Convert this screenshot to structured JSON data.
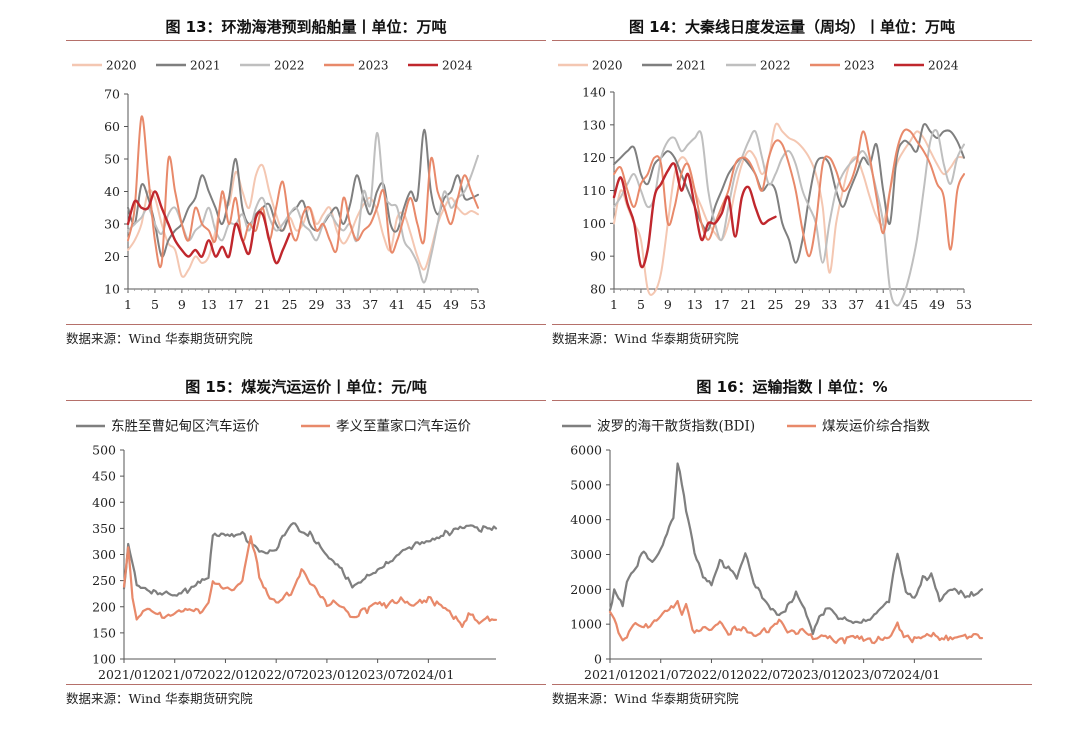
{
  "source_label": "数据来源：Wind 华泰期货研究院",
  "chart_data": [
    {
      "id": "fig13",
      "type": "line",
      "title": "图 13：环渤海港预到船舶量丨单位：万吨",
      "xlabel": "",
      "ylabel": "",
      "ylim": [
        10,
        70
      ],
      "yticks": [
        10,
        20,
        30,
        40,
        50,
        60,
        70
      ],
      "x_ticks": [
        1,
        5,
        9,
        13,
        17,
        21,
        25,
        29,
        33,
        37,
        41,
        45,
        49,
        53
      ],
      "x_range": [
        1,
        53
      ],
      "series": [
        {
          "name": "2020",
          "color": "#f4c7b2",
          "values": [
            22,
            25,
            30,
            40,
            38,
            30,
            24,
            22,
            14,
            16,
            20,
            18,
            20,
            28,
            38,
            36,
            46,
            40,
            35,
            45,
            48,
            40,
            33,
            28,
            32,
            28,
            30,
            35,
            30,
            33,
            35,
            28,
            24,
            27,
            32,
            36,
            38,
            34,
            26,
            22,
            32,
            33,
            27,
            20,
            16,
            22,
            30,
            35,
            38,
            35,
            33,
            34,
            33
          ]
        },
        {
          "name": "2021",
          "color": "#7f7f7f",
          "values": [
            35,
            30,
            42,
            38,
            30,
            20,
            25,
            28,
            30,
            35,
            38,
            45,
            40,
            35,
            30,
            38,
            50,
            35,
            30,
            33,
            35,
            36,
            30,
            28,
            33,
            35,
            37,
            30,
            28,
            30,
            33,
            35,
            30,
            36,
            45,
            38,
            33,
            40,
            42,
            30,
            28,
            35,
            40,
            38,
            59,
            40,
            33,
            38,
            40,
            45,
            38,
            38,
            39
          ]
        },
        {
          "name": "2022",
          "color": "#bfbfbf",
          "values": [
            28,
            30,
            32,
            35,
            30,
            27,
            33,
            35,
            30,
            25,
            28,
            30,
            35,
            28,
            25,
            30,
            30,
            33,
            28,
            35,
            38,
            32,
            28,
            30,
            33,
            35,
            30,
            28,
            25,
            30,
            33,
            30,
            28,
            30,
            25,
            40,
            36,
            58,
            40,
            36,
            35,
            25,
            22,
            18,
            12,
            20,
            30,
            40,
            35,
            38,
            40,
            45,
            51
          ]
        },
        {
          "name": "2023",
          "color": "#e8896a",
          "values": [
            25,
            35,
            63,
            45,
            25,
            18,
            50,
            40,
            30,
            25,
            35,
            30,
            28,
            25,
            40,
            30,
            38,
            25,
            30,
            28,
            35,
            25,
            35,
            43,
            30,
            25,
            33,
            35,
            28,
            30,
            25,
            22,
            38,
            30,
            25,
            28,
            30,
            35,
            40,
            22,
            25,
            32,
            38,
            30,
            25,
            50,
            40,
            35,
            30,
            38,
            45,
            40,
            35
          ]
        },
        {
          "name": "2024",
          "color": "#c0272d",
          "values": [
            30,
            37,
            35,
            35,
            40,
            35,
            30,
            25,
            22,
            20,
            22,
            20,
            25,
            20,
            23,
            20,
            30,
            25,
            21,
            32,
            33,
            25,
            18,
            22,
            27
          ]
        }
      ]
    },
    {
      "id": "fig14",
      "type": "line",
      "title": "图 14：大秦线日度发运量（周均）丨单位：万吨",
      "xlabel": "",
      "ylabel": "",
      "ylim": [
        80,
        140
      ],
      "yticks": [
        80,
        90,
        100,
        110,
        120,
        130,
        140
      ],
      "x_ticks": [
        1,
        5,
        9,
        13,
        17,
        21,
        25,
        29,
        33,
        37,
        41,
        45,
        49,
        53
      ],
      "x_range": [
        1,
        53
      ],
      "series": [
        {
          "name": "2020",
          "color": "#f4c7b2",
          "values": [
            100,
            110,
            105,
            100,
            95,
            80,
            79,
            85,
            100,
            115,
            120,
            118,
            110,
            105,
            100,
            97,
            95,
            100,
            110,
            118,
            122,
            120,
            115,
            120,
            130,
            128,
            126,
            125,
            123,
            120,
            115,
            105,
            85,
            100,
            110,
            118,
            120,
            115,
            108,
            102,
            100,
            110,
            118,
            122,
            125,
            128,
            126,
            122,
            118,
            115,
            117,
            120,
            120
          ]
        },
        {
          "name": "2021",
          "color": "#7f7f7f",
          "values": [
            118,
            120,
            122,
            123,
            115,
            112,
            118,
            120,
            122,
            120,
            115,
            110,
            105,
            100,
            98,
            105,
            110,
            115,
            118,
            120,
            118,
            115,
            110,
            112,
            110,
            100,
            95,
            88,
            95,
            108,
            118,
            120,
            118,
            110,
            105,
            110,
            115,
            120,
            118,
            124,
            110,
            100,
            120,
            125,
            124,
            122,
            130,
            128,
            126,
            128,
            128,
            125,
            120
          ]
        },
        {
          "name": "2022",
          "color": "#bfbfbf",
          "values": [
            105,
            108,
            112,
            115,
            110,
            105,
            108,
            120,
            125,
            126,
            122,
            124,
            126,
            127,
            110,
            100,
            95,
            105,
            115,
            120,
            125,
            128,
            120,
            112,
            115,
            120,
            122,
            118,
            110,
            105,
            100,
            88,
            100,
            110,
            115,
            118,
            120,
            122,
            118,
            110,
            100,
            80,
            75,
            78,
            85,
            95,
            110,
            125,
            128,
            118,
            112,
            120,
            124
          ]
        },
        {
          "name": "2023",
          "color": "#e8896a",
          "values": [
            115,
            117,
            110,
            105,
            112,
            115,
            120,
            118,
            100,
            105,
            115,
            118,
            110,
            100,
            95,
            100,
            105,
            110,
            118,
            120,
            119,
            115,
            110,
            120,
            125,
            124,
            118,
            110,
            98,
            90,
            100,
            118,
            120,
            116,
            110,
            112,
            118,
            128,
            120,
            108,
            97,
            110,
            122,
            128,
            128,
            125,
            122,
            118,
            112,
            108,
            92,
            110,
            115
          ]
        },
        {
          "name": "2024",
          "color": "#c0272d",
          "values": [
            108,
            114,
            106,
            100,
            87,
            92,
            108,
            112,
            116,
            118,
            110,
            115,
            105,
            95,
            100,
            100,
            103,
            108,
            96,
            108,
            111,
            105,
            100,
            101,
            102
          ]
        }
      ]
    },
    {
      "id": "fig15",
      "type": "line",
      "title": "图 15：煤炭汽运运价丨单位：元/吨",
      "xlabel": "",
      "ylabel": "",
      "ylim": [
        100,
        500
      ],
      "yticks": [
        100,
        150,
        200,
        250,
        300,
        350,
        400,
        450,
        500
      ],
      "x_range": [
        0,
        44
      ],
      "x_ticks_labels": [
        "2021/01",
        "2021/07",
        "2022/01",
        "2022/07",
        "2023/01",
        "2023/07",
        "2024/01"
      ],
      "x_ticks_pos": [
        0,
        6,
        12,
        18,
        24,
        30,
        36
      ],
      "series": [
        {
          "name": "东胜至曹妃甸区汽车运价",
          "color": "#7f7f7f",
          "x": [
            0,
            0.5,
            1,
            1.5,
            2,
            3,
            4,
            5,
            6,
            7,
            8,
            9,
            10,
            10.5,
            11,
            12,
            13,
            14,
            15,
            16,
            17,
            18,
            19,
            20,
            21,
            22,
            23,
            24,
            25,
            26,
            27,
            28,
            29,
            30,
            31,
            32,
            33,
            34,
            35,
            36,
            37,
            38,
            39,
            40,
            41,
            42,
            43,
            44
          ],
          "values": [
            235,
            320,
            280,
            240,
            235,
            230,
            225,
            230,
            225,
            230,
            235,
            245,
            255,
            340,
            340,
            340,
            340,
            340,
            320,
            305,
            300,
            310,
            340,
            365,
            345,
            340,
            320,
            295,
            280,
            265,
            240,
            250,
            265,
            270,
            280,
            290,
            305,
            315,
            325,
            330,
            335,
            340,
            345,
            350,
            352,
            348,
            352,
            350
          ]
        },
        {
          "name": "孝义至董家口汽车运价",
          "color": "#e8896a",
          "x": [
            0,
            0.5,
            1,
            1.5,
            2,
            3,
            4,
            5,
            6,
            7,
            8,
            9,
            10,
            10.5,
            11,
            12,
            13,
            14,
            15,
            16,
            17,
            18,
            19,
            20,
            21,
            22,
            23,
            24,
            25,
            26,
            27,
            28,
            29,
            30,
            31,
            32,
            33,
            34,
            35,
            36,
            37,
            38,
            39,
            40,
            41,
            42,
            43,
            44
          ],
          "values": [
            235,
            310,
            220,
            180,
            190,
            200,
            185,
            180,
            185,
            190,
            195,
            190,
            210,
            250,
            240,
            235,
            230,
            245,
            335,
            260,
            225,
            210,
            220,
            230,
            270,
            240,
            230,
            205,
            210,
            200,
            180,
            190,
            195,
            205,
            200,
            210,
            215,
            205,
            210,
            215,
            205,
            195,
            180,
            165,
            190,
            170,
            180,
            175
          ]
        }
      ]
    },
    {
      "id": "fig16",
      "type": "line",
      "title": "图 16：运输指数丨单位：%",
      "xlabel": "",
      "ylabel": "",
      "ylim": [
        0,
        6000
      ],
      "yticks": [
        0,
        1000,
        2000,
        3000,
        4000,
        5000,
        6000
      ],
      "x_range": [
        0,
        44
      ],
      "x_ticks_labels": [
        "2021/01",
        "2021/07",
        "2022/01",
        "2022/07",
        "2023/01",
        "2023/07",
        "2024/01"
      ],
      "x_ticks_pos": [
        0,
        6,
        12,
        18,
        24,
        30,
        36
      ],
      "series": [
        {
          "name": "波罗的海干散货指数(BDI)",
          "color": "#7f7f7f",
          "x": [
            0,
            0.5,
            1,
            1.5,
            2,
            3,
            4,
            5,
            6,
            7,
            7.5,
            8,
            8.5,
            9,
            10,
            11,
            12,
            13,
            14,
            15,
            16,
            17,
            18,
            19,
            20,
            21,
            22,
            23,
            24,
            25,
            26,
            27,
            28,
            29,
            30,
            31,
            32,
            33,
            34,
            35,
            36,
            37,
            38,
            39,
            40,
            41,
            42,
            43,
            44
          ],
          "values": [
            1400,
            2000,
            1700,
            1500,
            2200,
            2600,
            3100,
            2800,
            3200,
            3800,
            4000,
            5600,
            5000,
            4300,
            3100,
            2400,
            2200,
            2800,
            2600,
            2300,
            3000,
            2200,
            1800,
            1500,
            1300,
            1500,
            1900,
            1400,
            700,
            1300,
            1500,
            1200,
            1200,
            1050,
            1050,
            1150,
            1400,
            1700,
            3100,
            2000,
            1800,
            2300,
            2400,
            1650,
            1900,
            2000,
            1800,
            1900,
            2000
          ]
        },
        {
          "name": "煤炭运价综合指数",
          "color": "#e8896a",
          "x": [
            0,
            0.5,
            1,
            1.5,
            2,
            3,
            4,
            5,
            6,
            7,
            7.5,
            8,
            8.5,
            9,
            10,
            11,
            12,
            13,
            14,
            15,
            16,
            17,
            18,
            19,
            20,
            21,
            22,
            23,
            24,
            25,
            26,
            27,
            28,
            29,
            30,
            31,
            32,
            33,
            34,
            35,
            36,
            37,
            38,
            39,
            40,
            41,
            42,
            43,
            44
          ],
          "values": [
            1300,
            1100,
            800,
            600,
            700,
            1100,
            900,
            1000,
            1200,
            1400,
            1500,
            1700,
            1300,
            1600,
            700,
            900,
            800,
            1000,
            700,
            900,
            900,
            700,
            800,
            850,
            1100,
            700,
            800,
            850,
            600,
            700,
            650,
            500,
            550,
            600,
            550,
            500,
            600,
            650,
            1000,
            600,
            550,
            600,
            700,
            600,
            620,
            650,
            680,
            650,
            600
          ]
        }
      ]
    }
  ]
}
